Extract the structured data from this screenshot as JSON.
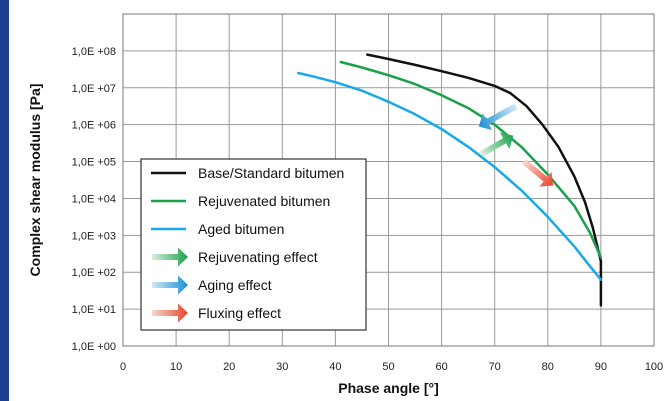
{
  "chart_data": {
    "type": "line",
    "xlabel": "Phase angle  [°]",
    "ylabel": "Complex shear modulus  [Pa]",
    "x_ticks": [
      "0",
      "10",
      "20",
      "30",
      "40",
      "50",
      "60",
      "70",
      "80",
      "90",
      "100"
    ],
    "y_ticks": [
      "1,0E +00",
      "1,0E +01",
      "1,0E +02",
      "1,0E +03",
      "1,0E +04",
      "1,0E +05",
      "1,0E +06",
      "1,0E +07",
      "1,0E +08"
    ],
    "xlim": [
      0,
      100
    ],
    "ylim_log10": [
      0,
      9
    ],
    "y_scale": "log",
    "grid": true,
    "legend_position": "lower-left",
    "series": [
      {
        "name": "Base/Standard bitumen",
        "color": "#111111",
        "x": [
          46,
          50,
          55,
          60,
          65,
          70,
          73,
          76,
          79,
          82,
          85,
          87,
          88.5,
          89.5,
          90,
          90,
          90
        ],
        "y_log10": [
          7.9,
          7.78,
          7.62,
          7.45,
          7.27,
          7.05,
          6.85,
          6.5,
          6.0,
          5.4,
          4.6,
          3.9,
          3.2,
          2.6,
          2.3,
          1.8,
          1.1
        ]
      },
      {
        "name": "Rejuvenated bitumen",
        "color": "#1aa04a",
        "x": [
          41,
          45,
          50,
          55,
          60,
          65,
          70,
          75,
          80,
          85,
          88,
          90
        ],
        "y_log10": [
          7.7,
          7.55,
          7.34,
          7.1,
          6.8,
          6.45,
          6.0,
          5.4,
          4.65,
          3.8,
          3.05,
          2.4
        ]
      },
      {
        "name": "Aged bitumen",
        "color": "#18a9e6",
        "x": [
          33,
          36,
          40,
          45,
          50,
          55,
          60,
          65,
          70,
          75,
          80,
          85,
          88,
          90
        ],
        "y_log10": [
          7.4,
          7.3,
          7.15,
          6.92,
          6.62,
          6.28,
          5.88,
          5.4,
          4.85,
          4.22,
          3.5,
          2.7,
          2.15,
          1.8
        ]
      }
    ],
    "effect_arrows": [
      {
        "name": "Rejuvenating effect",
        "from_color": "#d8eedd",
        "to_color": "#1aa04a",
        "x1": 67.5,
        "y1_log10": 5.2,
        "x2": 73.5,
        "y2_log10": 5.7
      },
      {
        "name": "Aging effect",
        "from_color": "#cfe9f7",
        "to_color": "#1a8fd6",
        "x1": 74,
        "y1_log10": 6.5,
        "x2": 67,
        "y2_log10": 5.95
      },
      {
        "name": "Fluxing effect",
        "from_color": "#f8d7cc",
        "to_color": "#e8442a",
        "x1": 75.5,
        "y1_log10": 5.0,
        "x2": 81,
        "y2_log10": 4.35
      }
    ],
    "legend": {
      "items": [
        {
          "label": "Base/Standard bitumen",
          "kind": "line",
          "color": "#111111"
        },
        {
          "label": "Rejuvenated bitumen",
          "kind": "line",
          "color": "#1aa04a"
        },
        {
          "label": "Aged bitumen",
          "kind": "line",
          "color": "#18a9e6"
        },
        {
          "label": "Rejuvenating effect",
          "kind": "arrow",
          "from_color": "#d8eedd",
          "to_color": "#1aa04a"
        },
        {
          "label": "Aging effect",
          "kind": "arrow",
          "from_color": "#cfe9f7",
          "to_color": "#1a8fd6"
        },
        {
          "label": "Fluxing effect",
          "kind": "arrow",
          "from_color": "#f8d7cc",
          "to_color": "#e8442a"
        }
      ]
    }
  }
}
